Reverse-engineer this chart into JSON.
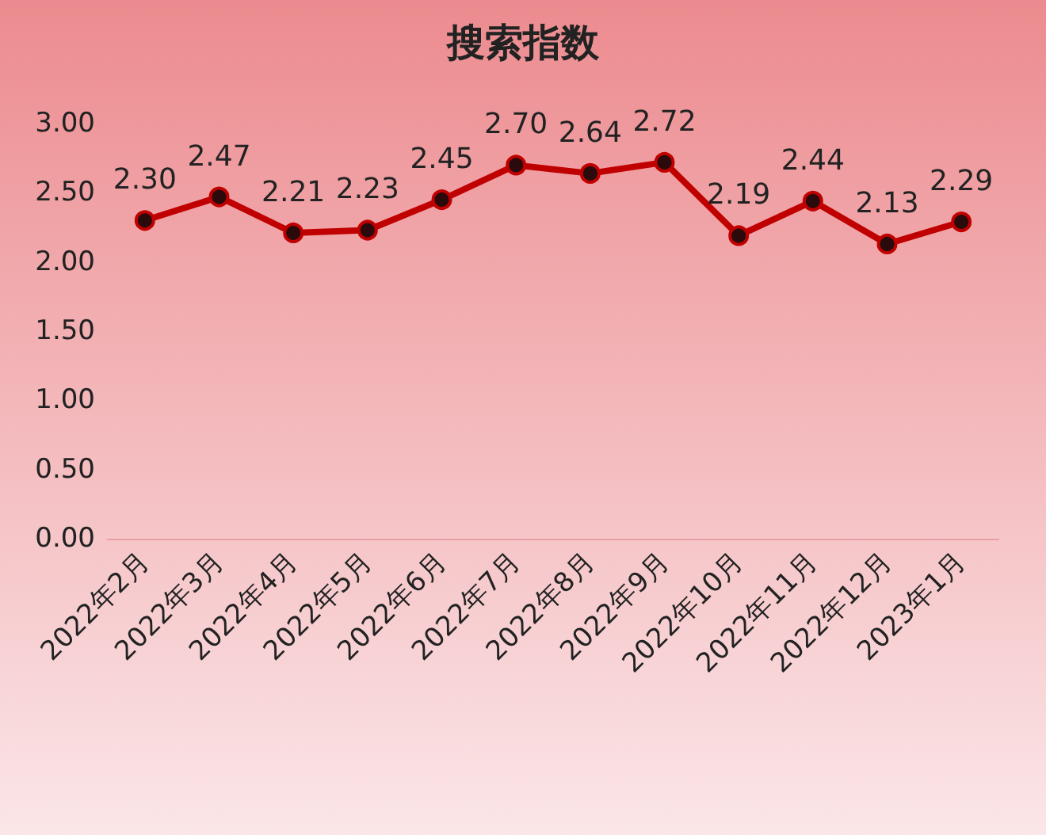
{
  "chart_data": {
    "type": "line",
    "title": "搜索指数",
    "categories": [
      "2022年2月",
      "2022年3月",
      "2022年4月",
      "2022年5月",
      "2022年6月",
      "2022年7月",
      "2022年8月",
      "2022年9月",
      "2022年10月",
      "2022年11月",
      "2022年12月",
      "2023年1月"
    ],
    "series": [
      {
        "color": "#c00000",
        "values": [
          2.3,
          2.47,
          2.21,
          2.23,
          2.45,
          2.7,
          2.64,
          2.72,
          2.19,
          2.44,
          2.13,
          2.29
        ],
        "value_labels": [
          "2.30",
          "2.47",
          "2.21",
          "2.23",
          "2.45",
          "2.70",
          "2.64",
          "2.72",
          "2.19",
          "2.44",
          "2.13",
          "2.29"
        ]
      }
    ],
    "ylim": [
      0,
      3
    ],
    "yticks": [
      {
        "value": 0,
        "label": "0.00"
      },
      {
        "value": 0.5,
        "label": "0.50"
      },
      {
        "value": 1,
        "label": "1.00"
      },
      {
        "value": 1.5,
        "label": "1.50"
      },
      {
        "value": 2,
        "label": "2.00"
      },
      {
        "value": 2.5,
        "label": "2.50"
      },
      {
        "value": 3,
        "label": "3.00"
      }
    ],
    "grid": false,
    "marker": "circle",
    "line_style": "solid"
  }
}
